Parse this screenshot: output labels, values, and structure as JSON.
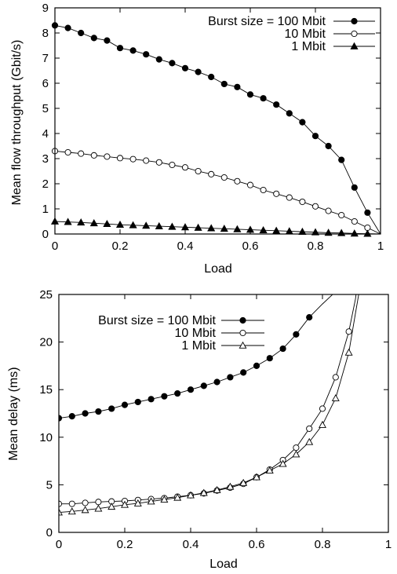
{
  "chart_data": [
    {
      "type": "line",
      "xlabel": "Load",
      "ylabel": "Mean flow throughput (Gbit/s)",
      "xlim": [
        0,
        1
      ],
      "ylim": [
        0,
        9
      ],
      "x_ticks": [
        "0",
        "0.2",
        "0.4",
        "0.6",
        "0.8",
        "1"
      ],
      "y_ticks": [
        "0",
        "1",
        "2",
        "3",
        "4",
        "5",
        "6",
        "7",
        "8",
        "9"
      ],
      "legend_position": "top-right",
      "grid": false,
      "x": [
        0,
        0.04,
        0.08,
        0.12,
        0.16,
        0.2,
        0.24,
        0.28,
        0.32,
        0.36,
        0.4,
        0.44,
        0.48,
        0.52,
        0.56,
        0.6,
        0.64,
        0.68,
        0.72,
        0.76,
        0.8,
        0.84,
        0.88,
        0.92,
        0.96
      ],
      "series": [
        {
          "name": "Burst size = 100 Mbit",
          "marker": "filled-circle",
          "values": [
            8.3,
            8.2,
            8.0,
            7.8,
            7.7,
            7.4,
            7.3,
            7.15,
            6.95,
            6.8,
            6.6,
            6.45,
            6.25,
            5.97,
            5.85,
            5.55,
            5.4,
            5.15,
            4.8,
            4.45,
            3.9,
            3.5,
            2.95,
            1.85,
            0.85
          ]
        },
        {
          "name": "10 Mbit",
          "marker": "open-circle",
          "values": [
            3.3,
            3.25,
            3.2,
            3.13,
            3.08,
            3.02,
            2.98,
            2.92,
            2.85,
            2.75,
            2.65,
            2.5,
            2.38,
            2.25,
            2.1,
            1.95,
            1.75,
            1.6,
            1.45,
            1.28,
            1.1,
            0.92,
            0.75,
            0.5,
            0.25
          ]
        },
        {
          "name": "1 Mbit",
          "marker": "filled-triangle",
          "values": [
            0.5,
            0.48,
            0.46,
            0.43,
            0.4,
            0.37,
            0.35,
            0.33,
            0.31,
            0.29,
            0.27,
            0.25,
            0.23,
            0.21,
            0.19,
            0.17,
            0.15,
            0.13,
            0.11,
            0.09,
            0.07,
            0.05,
            0.04,
            0.02,
            0.01
          ]
        }
      ]
    },
    {
      "type": "line",
      "xlabel": "Load",
      "ylabel": "Mean delay (ms)",
      "xlim": [
        0,
        1
      ],
      "ylim": [
        0,
        25
      ],
      "x_ticks": [
        "0",
        "0.2",
        "0.4",
        "0.6",
        "0.8",
        "1"
      ],
      "y_ticks": [
        "0",
        "5",
        "10",
        "15",
        "20",
        "25"
      ],
      "legend_position": "top-left",
      "grid": false,
      "series": [
        {
          "name": "Burst size = 100 Mbit",
          "marker": "filled-circle",
          "x": [
            0,
            0.04,
            0.08,
            0.12,
            0.16,
            0.2,
            0.24,
            0.28,
            0.32,
            0.36,
            0.4,
            0.44,
            0.48,
            0.52,
            0.56,
            0.6,
            0.64,
            0.68,
            0.72,
            0.76
          ],
          "values": [
            12.0,
            12.2,
            12.5,
            12.7,
            13.0,
            13.4,
            13.7,
            14.0,
            14.3,
            14.6,
            15.0,
            15.4,
            15.8,
            16.3,
            16.8,
            17.5,
            18.3,
            19.3,
            20.8,
            22.6
          ],
          "curve_extension": {
            "x": [
              0.8,
              0.84,
              0.87
            ],
            "values": [
              24.0,
              25.3,
              27.5
            ]
          }
        },
        {
          "name": "10 Mbit",
          "marker": "open-circle",
          "x": [
            0,
            0.04,
            0.08,
            0.12,
            0.16,
            0.2,
            0.24,
            0.28,
            0.32,
            0.36,
            0.4,
            0.44,
            0.48,
            0.52,
            0.56,
            0.6,
            0.64,
            0.68,
            0.72,
            0.76,
            0.8,
            0.84,
            0.88
          ],
          "values": [
            3.0,
            3.0,
            3.1,
            3.2,
            3.25,
            3.3,
            3.4,
            3.5,
            3.6,
            3.75,
            3.9,
            4.1,
            4.4,
            4.7,
            5.1,
            5.8,
            6.6,
            7.6,
            8.9,
            10.9,
            13.0,
            16.3,
            21.1
          ],
          "curve_extension": {
            "x": [
              0.9,
              0.91
            ],
            "values": [
              24.5,
              27.0
            ]
          }
        },
        {
          "name": "1 Mbit",
          "marker": "open-triangle",
          "x": [
            0,
            0.04,
            0.08,
            0.12,
            0.16,
            0.2,
            0.24,
            0.28,
            0.32,
            0.36,
            0.4,
            0.44,
            0.48,
            0.52,
            0.56,
            0.6,
            0.64,
            0.68,
            0.72,
            0.76,
            0.8,
            0.84,
            0.88
          ],
          "values": [
            2.1,
            2.2,
            2.35,
            2.5,
            2.7,
            2.9,
            3.05,
            3.25,
            3.45,
            3.65,
            3.9,
            4.15,
            4.45,
            4.8,
            5.2,
            5.8,
            6.5,
            7.2,
            8.2,
            9.5,
            11.3,
            14.1,
            18.9
          ],
          "curve_extension": {
            "x": [
              0.9,
              0.92
            ],
            "values": [
              23.0,
              27.0
            ]
          }
        }
      ]
    }
  ]
}
